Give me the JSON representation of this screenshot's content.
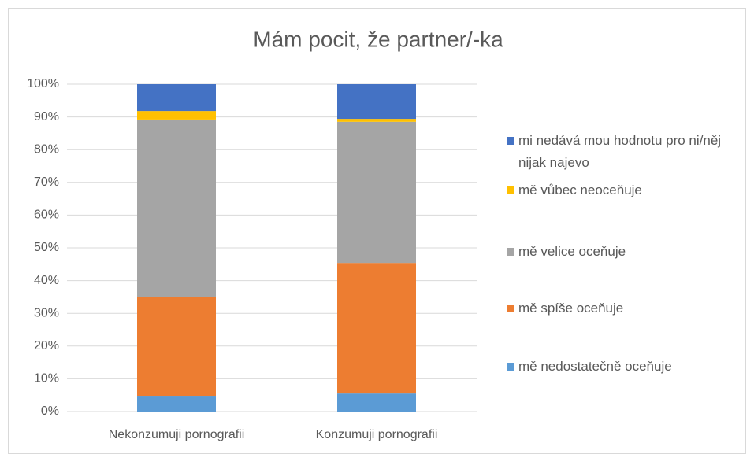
{
  "chart_data": {
    "type": "stacked_bar",
    "title": "Mám pocit, že partner/-ka",
    "categories": [
      "Nekonzumuji pornografii",
      "Konzumuji pornografii"
    ],
    "series": [
      {
        "name": "mě nedostatečně oceňuje",
        "color": "#5b9bd5",
        "values": [
          4.8,
          5.5
        ]
      },
      {
        "name": "mě spíše oceňuje",
        "color": "#ed7d31",
        "values": [
          30.1,
          39.9
        ]
      },
      {
        "name": "mě velice oceňuje",
        "color": "#a5a5a5",
        "values": [
          54.3,
          43.1
        ]
      },
      {
        "name": "mě vůbec neoceňuje",
        "color": "#ffc000",
        "values": [
          2.6,
          0.9
        ]
      },
      {
        "name": "mi nedává mou hodnotu pro ni/něj nijak najevo",
        "color": "#4472c4",
        "values": [
          8.2,
          10.6
        ]
      }
    ],
    "ylim": [
      0,
      100
    ],
    "yticks": [
      {
        "value": 0,
        "label": "0%"
      },
      {
        "value": 10,
        "label": "10%"
      },
      {
        "value": 20,
        "label": "20%"
      },
      {
        "value": 30,
        "label": "30%"
      },
      {
        "value": 40,
        "label": "40%"
      },
      {
        "value": 50,
        "label": "50%"
      },
      {
        "value": 60,
        "label": "60%"
      },
      {
        "value": 70,
        "label": "70%"
      },
      {
        "value": 80,
        "label": "80%"
      },
      {
        "value": 90,
        "label": "90%"
      },
      {
        "value": 100,
        "label": "100%"
      }
    ],
    "grid": true,
    "legend": "right"
  }
}
